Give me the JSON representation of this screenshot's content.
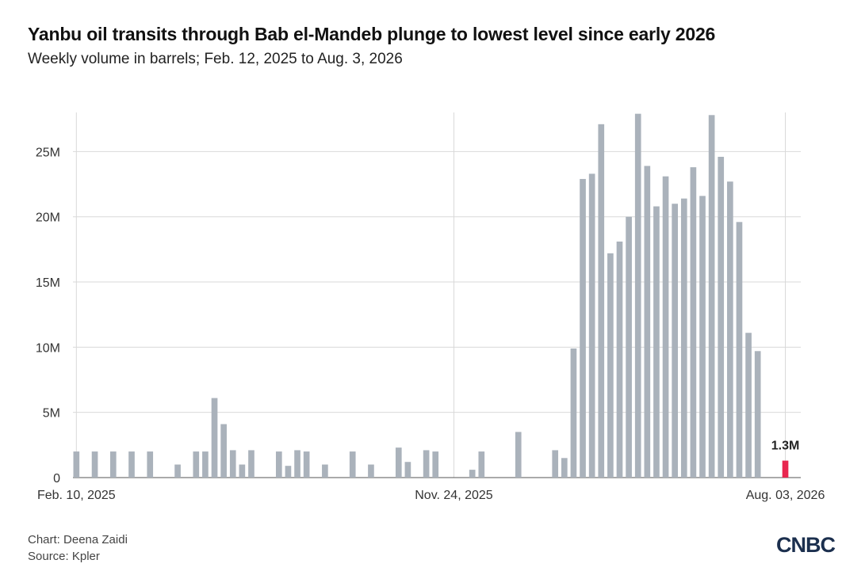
{
  "header": {
    "title": "Yanbu oil transits through Bab el-Mandeb plunge to lowest level since early 2026",
    "subtitle": "Weekly volume in barrels; Feb. 12, 2025 to Aug. 3, 2026"
  },
  "footer": {
    "chart_credit": "Chart: Deena Zaidi",
    "source": "Source: Kpler"
  },
  "logo": {
    "text": "CNBC"
  },
  "colors": {
    "bar": "#aab2bb",
    "highlight": "#e8264f",
    "grid": "#d9d9d9"
  },
  "chart_data": {
    "type": "bar",
    "title": "Yanbu oil transits through Bab el-Mandeb plunge to lowest level since early 2026",
    "subtitle": "Weekly volume in barrels; Feb. 12, 2025 to Aug. 3, 2026",
    "xlabel": "",
    "ylabel": "",
    "ylim": [
      0,
      28000000
    ],
    "y_ticks": [
      0,
      5000000,
      10000000,
      15000000,
      20000000,
      25000000
    ],
    "y_tick_labels": [
      "0",
      "5M",
      "10M",
      "15M",
      "20M",
      "25M"
    ],
    "x_tick_labels": [
      "Feb. 10, 2025",
      "Nov. 24, 2025",
      "Aug. 03, 2026"
    ],
    "x_tick_week_index": [
      0,
      41,
      77
    ],
    "grid": true,
    "annotation": {
      "week_index": 77,
      "label": "1.3M"
    },
    "highlight_week_index": 77,
    "values": [
      2000000,
      0,
      2000000,
      0,
      2000000,
      0,
      2000000,
      0,
      2000000,
      0,
      0,
      1000000,
      0,
      2000000,
      2000000,
      6100000,
      4100000,
      2100000,
      1000000,
      2100000,
      0,
      0,
      2000000,
      900000,
      2100000,
      2000000,
      0,
      1000000,
      0,
      0,
      2000000,
      0,
      1000000,
      0,
      0,
      2300000,
      1200000,
      0,
      2100000,
      2000000,
      0,
      0,
      0,
      600000,
      2000000,
      0,
      0,
      0,
      3500000,
      0,
      0,
      0,
      2100000,
      1500000,
      9900000,
      22900000,
      23300000,
      27100000,
      17200000,
      18100000,
      20000000,
      27900000,
      23900000,
      20800000,
      23100000,
      21000000,
      21400000,
      23800000,
      21600000,
      27800000,
      24600000,
      22700000,
      19600000,
      11100000,
      9700000,
      0,
      0,
      1300000
    ]
  }
}
